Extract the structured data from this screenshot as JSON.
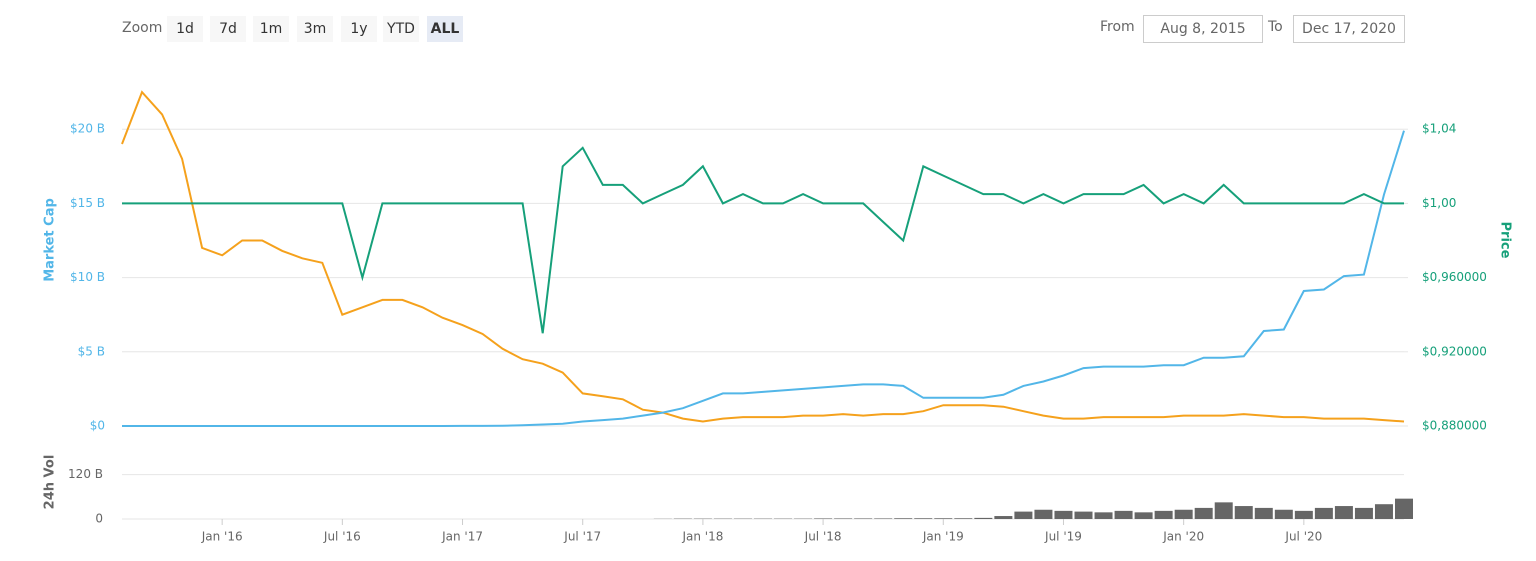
{
  "controls": {
    "zoom_label": "Zoom",
    "zoom_buttons": [
      "1d",
      "7d",
      "1m",
      "3m",
      "1y",
      "YTD",
      "ALL"
    ],
    "active": "ALL",
    "from_label": "From",
    "from": "Aug 8, 2015",
    "to_label": "To",
    "to": "Dec 17, 2020"
  },
  "chart_data": [
    {
      "type": "line",
      "ylabel": "Market Cap",
      "y2label": "Price",
      "grid": true,
      "ylim": [
        0,
        25
      ],
      "yticks": [
        {
          "value": 0,
          "label": "$0"
        },
        {
          "value": 5,
          "label": "$5 B"
        },
        {
          "value": 10,
          "label": "$10 B"
        },
        {
          "value": 15,
          "label": "$15 B"
        },
        {
          "value": 20,
          "label": "$20 B"
        }
      ],
      "y2lim": [
        0.88,
        1.08
      ],
      "y2ticks": [
        {
          "value": 0.88,
          "label": "$0,880000"
        },
        {
          "value": 0.92,
          "label": "$0,920000"
        },
        {
          "value": 0.96,
          "label": "$0,960000"
        },
        {
          "value": 1.0,
          "label": "$1,00"
        },
        {
          "value": 1.04,
          "label": "$1,04"
        }
      ],
      "series": [
        {
          "color": "#f5a11c",
          "values": [
            19,
            22.5,
            21,
            18,
            12,
            11.5,
            12.5,
            12.5,
            11.8,
            11.3,
            11,
            7.5,
            8,
            8.5,
            8.5,
            8,
            7.3,
            6.8,
            6.2,
            5.2,
            4.5,
            4.2,
            3.6,
            2.2,
            2.0,
            1.8,
            1.1,
            0.9,
            0.5,
            0.3,
            0.5,
            0.6,
            0.6,
            0.6,
            0.7,
            0.7,
            0.8,
            0.7,
            0.8,
            0.8,
            1.0,
            1.4,
            1.4,
            1.4,
            1.3,
            1.0,
            0.7,
            0.5,
            0.5,
            0.6,
            0.6,
            0.6,
            0.6,
            0.7,
            0.7,
            0.7,
            0.8,
            0.7,
            0.6,
            0.6,
            0.5,
            0.5,
            0.5,
            0.4,
            0.3
          ]
        },
        {
          "color": "#52b6e8",
          "values": [
            0,
            0,
            0,
            0,
            0,
            0,
            0,
            0,
            0,
            0,
            0,
            0,
            0,
            0,
            0,
            0,
            0,
            0.01,
            0.01,
            0.02,
            0.05,
            0.1,
            0.15,
            0.3,
            0.4,
            0.5,
            0.7,
            0.9,
            1.2,
            1.7,
            2.2,
            2.2,
            2.3,
            2.4,
            2.5,
            2.6,
            2.7,
            2.8,
            2.8,
            2.7,
            1.9,
            1.9,
            1.9,
            1.9,
            2.1,
            2.7,
            3.0,
            3.4,
            3.9,
            4.0,
            4.0,
            4.0,
            4.1,
            4.1,
            4.6,
            4.6,
            4.7,
            6.4,
            6.5,
            9.1,
            9.2,
            10.1,
            10.2,
            15.6,
            19.9
          ]
        },
        {
          "color": "#16a07a",
          "axis": "y2",
          "values": [
            1,
            1,
            1,
            1,
            1,
            1,
            1,
            1,
            1,
            1,
            1,
            1,
            0.96,
            1,
            1,
            1,
            1,
            1,
            1,
            1,
            1,
            0.93,
            1.02,
            1.03,
            1.01,
            1.01,
            1.0,
            1.005,
            1.01,
            1.02,
            1.0,
            1.005,
            1.0,
            1.0,
            1.005,
            1.0,
            1.0,
            1.0,
            0.99,
            0.98,
            1.02,
            1.015,
            1.01,
            1.005,
            1.005,
            1.0,
            1.005,
            1.0,
            1.005,
            1.005,
            1.005,
            1.01,
            1.0,
            1.005,
            1.0,
            1.01,
            1.0,
            1.0,
            1.0,
            1.0,
            1.0,
            1.0,
            1.005,
            1.0,
            1.0
          ]
        }
      ]
    },
    {
      "type": "bar",
      "ylabel": "24h Vol",
      "color": "#666666",
      "ylim": [
        0,
        200
      ],
      "yticks": [
        0,
        {
          "value": 120,
          "label": "120 B"
        }
      ],
      "categories": [
        null,
        null,
        null,
        null,
        null,
        "Jan '16",
        null,
        null,
        null,
        null,
        null,
        "Jul '16",
        null,
        null,
        null,
        null,
        null,
        "Jan '17",
        null,
        null,
        null,
        null,
        null,
        "Jul '17",
        null,
        null,
        null,
        null,
        null,
        "Jan '18",
        null,
        null,
        null,
        null,
        null,
        "Jul '18",
        null,
        null,
        null,
        null,
        null,
        "Jan '19",
        null,
        null,
        null,
        null,
        null,
        "Jul '19",
        null,
        null,
        null,
        null,
        null,
        "Jan '20",
        null,
        null,
        null,
        null,
        null,
        "Jul '20",
        null,
        null,
        null,
        null,
        null
      ],
      "values": [
        0,
        0,
        0,
        0,
        0,
        0,
        0,
        0,
        0,
        0,
        0,
        0,
        0,
        0,
        0,
        0,
        0,
        0,
        0,
        0,
        0,
        0,
        0,
        0,
        0,
        0,
        0,
        0.5,
        1,
        1,
        1,
        1,
        1,
        1,
        1,
        1.5,
        1.5,
        1.5,
        1.5,
        2,
        2,
        2,
        2,
        3,
        8,
        20,
        25,
        22,
        20,
        18,
        22,
        18,
        22,
        25,
        30,
        45,
        35,
        30,
        25,
        22,
        30,
        35,
        30,
        40,
        55
      ]
    }
  ]
}
